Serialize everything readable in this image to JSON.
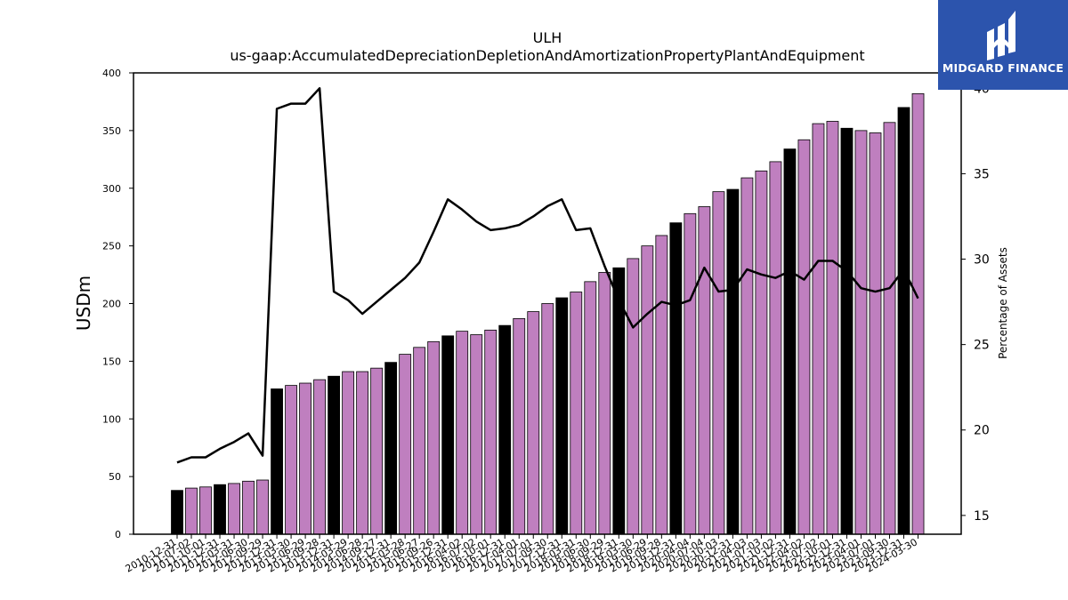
{
  "logo": {
    "text": "MIDGARD FINANCE",
    "icon": "midgard-logo-icon"
  },
  "chart_data": {
    "type": "bar",
    "title": "ULH",
    "subtitle": "us-gaap:AccumulatedDepreciationDepletionAndAmortizationPropertyPlantAndEquipment",
    "ylabel": "USDm",
    "y2label": "Percentage of Assets",
    "ylim": [
      0,
      400
    ],
    "y2lim": [
      13.9,
      40.9
    ],
    "yticks": [
      0,
      50,
      100,
      150,
      200,
      250,
      300,
      350,
      400
    ],
    "y2ticks": [
      15,
      20,
      25,
      30,
      35,
      40
    ],
    "categories": [
      "2010-12-31",
      "2011-07-02",
      "2011-10-01",
      "2011-12-31",
      "2012-03-31",
      "2012-06-30",
      "2012-09-29",
      "2012-12-31",
      "2013-03-30",
      "2013-06-29",
      "2013-09-28",
      "2013-12-31",
      "2014-03-29",
      "2014-06-28",
      "2014-09-27",
      "2014-12-31",
      "2015-03-28",
      "2015-06-27",
      "2015-09-26",
      "2015-12-31",
      "2016-04-02",
      "2016-07-02",
      "2016-10-01",
      "2016-12-31",
      "2017-04-01",
      "2017-07-01",
      "2017-09-30",
      "2017-12-31",
      "2018-03-31",
      "2018-06-30",
      "2018-09-29",
      "2018-12-31",
      "2019-03-30",
      "2019-06-29",
      "2019-09-28",
      "2019-12-31",
      "2020-04-04",
      "2020-07-04",
      "2020-10-03",
      "2020-12-31",
      "2021-04-03",
      "2021-07-03",
      "2021-10-02",
      "2021-12-31",
      "2022-04-02",
      "2022-07-02",
      "2022-10-01",
      "2022-12-31",
      "2023-04-01",
      "2023-07-01",
      "2023-09-30",
      "2023-12-31",
      "2024-03-30"
    ],
    "values": [
      38,
      40,
      41,
      43,
      44,
      46,
      47,
      126,
      129,
      131,
      134,
      137,
      141,
      141,
      144,
      149,
      156,
      162,
      167,
      172,
      176,
      173,
      177,
      181,
      187,
      193,
      200,
      205,
      210,
      219,
      227,
      231,
      239,
      250,
      259,
      270,
      278,
      284,
      297,
      299,
      309,
      315,
      323,
      334,
      342,
      356,
      358,
      352,
      350,
      348,
      357,
      370,
      382
    ],
    "bar_highlight": [
      true,
      false,
      false,
      true,
      false,
      false,
      false,
      true,
      false,
      false,
      false,
      true,
      false,
      false,
      false,
      true,
      false,
      false,
      false,
      true,
      false,
      false,
      false,
      true,
      false,
      false,
      false,
      true,
      false,
      false,
      false,
      true,
      false,
      false,
      false,
      true,
      false,
      false,
      false,
      true,
      false,
      false,
      false,
      true,
      false,
      false,
      false,
      true,
      false,
      false,
      false,
      true,
      false
    ],
    "line_series": {
      "name": "Percentage of Assets",
      "values": [
        18.1,
        18.4,
        18.4,
        18.9,
        19.3,
        19.8,
        18.5,
        38.8,
        39.1,
        39.1,
        40.0,
        28.1,
        27.6,
        26.8,
        27.5,
        28.2,
        28.9,
        29.8,
        31.6,
        33.5,
        32.9,
        32.2,
        31.7,
        31.8,
        32.0,
        32.5,
        33.1,
        33.5,
        31.7,
        31.8,
        29.6,
        27.6,
        26.0,
        26.8,
        27.5,
        27.3,
        27.6,
        29.5,
        28.1,
        28.2,
        29.4,
        29.1,
        28.9,
        29.3,
        28.8,
        29.9,
        29.9,
        29.3,
        28.3,
        28.1,
        28.3,
        29.4,
        27.7
      ]
    },
    "colors": {
      "bar": "#bf7fbf",
      "bar_highlight": "#000000",
      "line": "#000000",
      "logo_bg": "#2c54ad"
    },
    "grid": false
  }
}
